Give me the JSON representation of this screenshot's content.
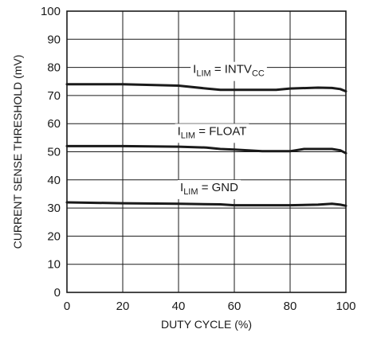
{
  "chart_data": {
    "type": "line",
    "title": "",
    "xlabel": "DUTY CYCLE (%)",
    "ylabel": "CURRENT SENSE THRESHOLD (mV)",
    "xlim": [
      0,
      100
    ],
    "ylim": [
      0,
      100
    ],
    "xticks": [
      "0",
      "20",
      "40",
      "60",
      "80",
      "100"
    ],
    "yticks": [
      "0",
      "10",
      "20",
      "30",
      "40",
      "50",
      "60",
      "70",
      "80",
      "90",
      "100"
    ],
    "grid": true,
    "series": [
      {
        "name": "I_LIM = INTV_CC",
        "label_main": "I",
        "label_sub": "LIM",
        "label_mid": " = INTV",
        "label_sub2": "CC",
        "label_x": 58,
        "label_y": 78,
        "x": [
          0,
          20,
          40,
          50,
          55,
          60,
          70,
          75,
          80,
          90,
          95,
          98,
          100
        ],
        "y": [
          74,
          74,
          73.5,
          72.5,
          72,
          72,
          72,
          72,
          72.5,
          72.8,
          72.7,
          72.3,
          71.5
        ]
      },
      {
        "name": "I_LIM = FLOAT",
        "label_main": "I",
        "label_sub": "LIM",
        "label_mid": " = FLOAT",
        "label_sub2": "",
        "label_x": 52,
        "label_y": 56,
        "x": [
          0,
          20,
          40,
          50,
          55,
          60,
          65,
          70,
          80,
          85,
          95,
          98,
          100
        ],
        "y": [
          52,
          52,
          51.8,
          51.5,
          51,
          50.8,
          50.5,
          50.2,
          50.2,
          51,
          51,
          50.5,
          49.5
        ]
      },
      {
        "name": "I_LIM = GND",
        "label_main": "I",
        "label_sub": "LIM",
        "label_mid": " = GND",
        "label_sub2": "",
        "label_x": 51,
        "label_y": 36,
        "x": [
          0,
          20,
          40,
          55,
          60,
          80,
          90,
          95,
          98,
          100
        ],
        "y": [
          32,
          31.7,
          31.5,
          31.3,
          31,
          31,
          31.2,
          31.5,
          31.2,
          30.8
        ]
      }
    ]
  }
}
